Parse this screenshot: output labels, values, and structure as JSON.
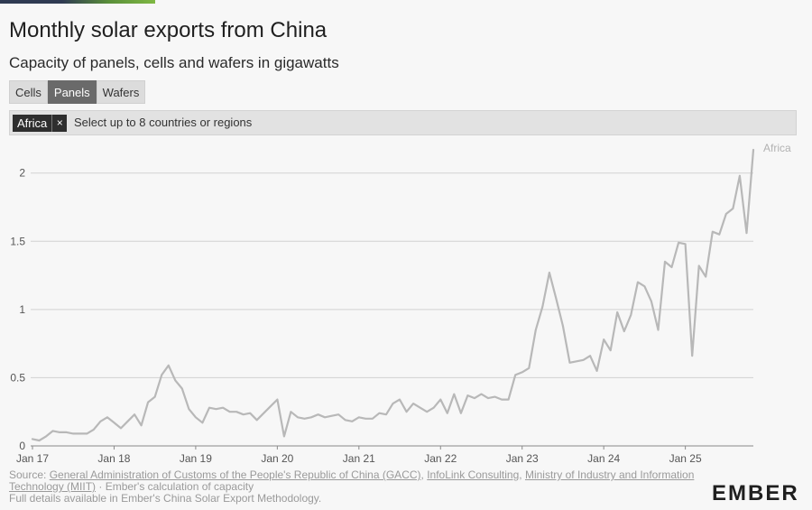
{
  "header": {
    "title": "Monthly solar exports from China",
    "subtitle": "Capacity of panels, cells and wafers in gigawatts"
  },
  "tabs": [
    {
      "label": "Cells",
      "active": false
    },
    {
      "label": "Panels",
      "active": true
    },
    {
      "label": "Wafers",
      "active": false
    }
  ],
  "selector": {
    "chip_label": "Africa",
    "chip_close": "×",
    "placeholder": "Select up to 8 countries or regions"
  },
  "colors": {
    "series": "#b8b8b8",
    "grid": "#d2d2d2",
    "active_tab": "#6a6a6a"
  },
  "chart_data": {
    "type": "line",
    "title": "Monthly solar exports from China",
    "subtitle": "Capacity of panels, cells and wafers in gigawatts",
    "xlabel": "",
    "ylabel": "",
    "ylim": [
      0,
      2.17
    ],
    "y_ticks": [
      0,
      0.5,
      1,
      1.5,
      2
    ],
    "y_tick_labels": [
      "0",
      "0.5",
      "1",
      "1.5",
      "2"
    ],
    "x_tick_labels": [
      "Jan 17",
      "Jan 18",
      "Jan 19",
      "Jan 20",
      "Jan 21",
      "Jan 22",
      "Jan 23",
      "Jan 24",
      "Jan 25"
    ],
    "grid": true,
    "legend": "line-end label",
    "series": [
      {
        "name": "Africa",
        "start": "Jan 17",
        "frequency": "monthly",
        "values": [
          0.05,
          0.04,
          0.07,
          0.11,
          0.1,
          0.1,
          0.09,
          0.09,
          0.09,
          0.12,
          0.18,
          0.21,
          0.17,
          0.13,
          0.18,
          0.23,
          0.15,
          0.32,
          0.36,
          0.52,
          0.59,
          0.48,
          0.42,
          0.27,
          0.21,
          0.17,
          0.28,
          0.27,
          0.28,
          0.25,
          0.25,
          0.23,
          0.24,
          0.19,
          0.24,
          0.29,
          0.34,
          0.07,
          0.25,
          0.21,
          0.2,
          0.21,
          0.23,
          0.21,
          0.22,
          0.23,
          0.19,
          0.18,
          0.21,
          0.2,
          0.2,
          0.24,
          0.23,
          0.31,
          0.34,
          0.25,
          0.31,
          0.28,
          0.25,
          0.28,
          0.34,
          0.24,
          0.38,
          0.24,
          0.37,
          0.35,
          0.38,
          0.35,
          0.36,
          0.34,
          0.34,
          0.52,
          0.54,
          0.57,
          0.85,
          1.02,
          1.27,
          1.08,
          0.88,
          0.61,
          0.62,
          0.63,
          0.66,
          0.55,
          0.78,
          0.7,
          0.98,
          0.84,
          0.96,
          1.2,
          1.17,
          1.06,
          0.85,
          1.35,
          1.31,
          1.49,
          1.48,
          0.66,
          1.32,
          1.24,
          1.57,
          1.55,
          1.7,
          1.74,
          1.98,
          1.56,
          2.17
        ]
      }
    ]
  },
  "footer": {
    "source_prefix": "Source: ",
    "link_gacc": "General Administration of Customs of the People's Republic of China (GACC)",
    "sep1": ", ",
    "link_infolink": "InfoLink Consulting",
    "sep2": ", ",
    "link_miit": "Ministry of Industry and Information Technology (MIIT)",
    "source_suffix": " · Ember's calculation of capacity",
    "methodology": "Full details available in Ember's China Solar Export Methodology."
  },
  "logo": {
    "text": "EMBER"
  }
}
